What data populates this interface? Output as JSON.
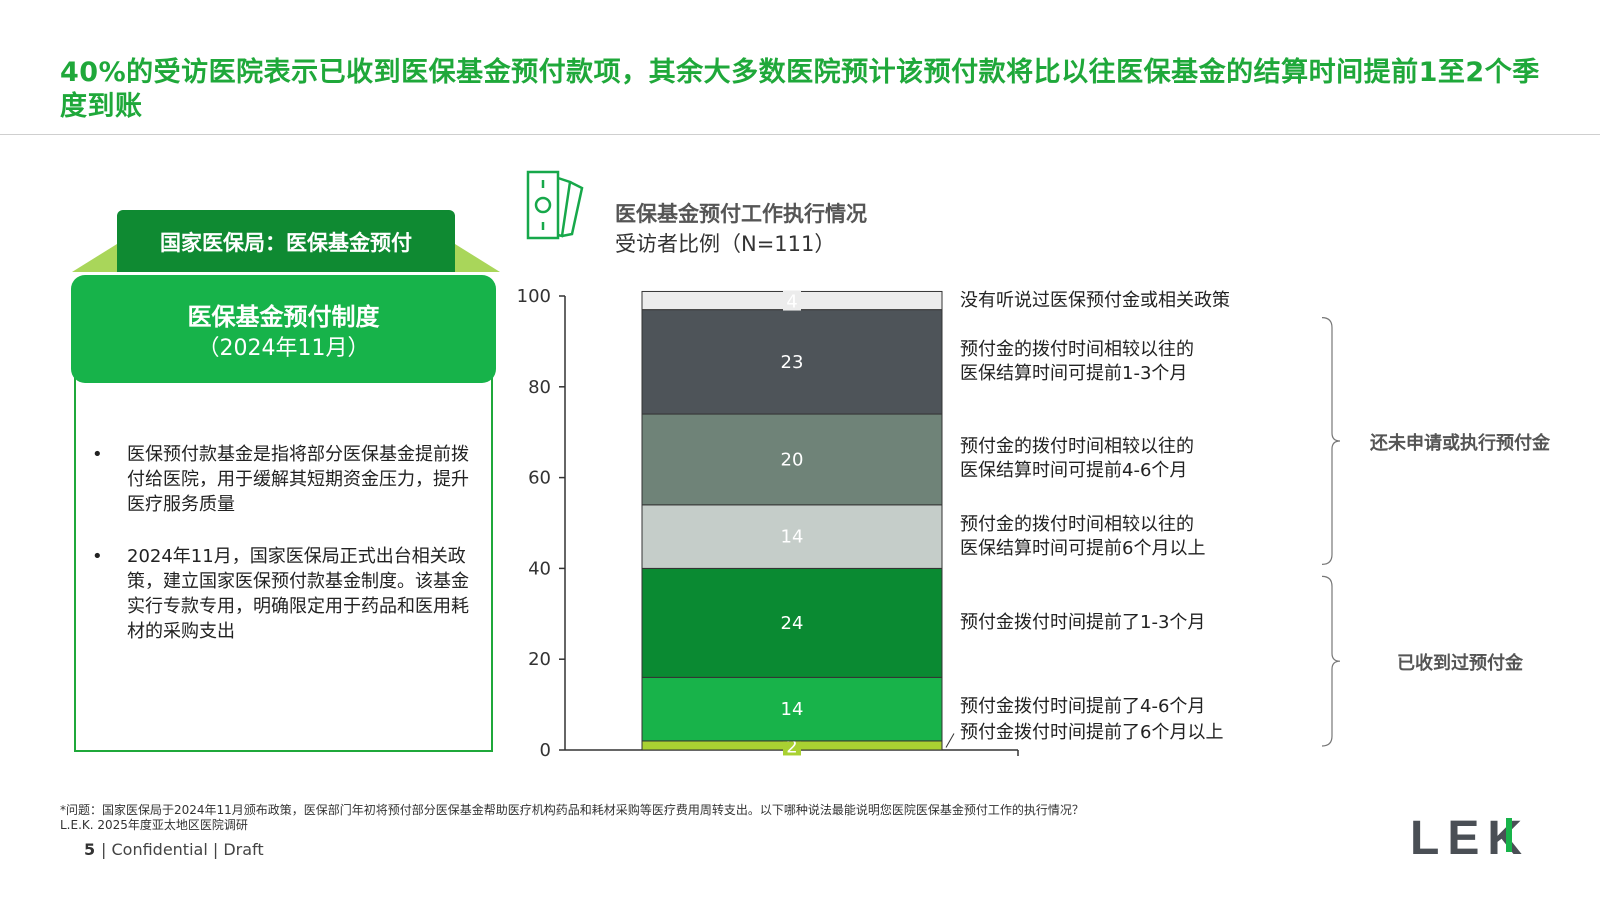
{
  "page": {
    "title": "40%的受访医院表示已收到医保基金预付款项，其余大多数医院预计该预付款将比以往医保基金的结算时间提前1至2个季度到账",
    "page_number": "5",
    "confidentiality": "| Confidential | Draft",
    "footnote_question": "*问题：国家医保局于2024年11月颁布政策，医保部门年初将预付部分医保基金帮助医疗机构药品和耗材采购等医疗费用周转支出。以下哪种说法最能说明您医院医保基金预付工作的执行情况？",
    "footnote_source": "L.E.K. 2025年度亚太地区医院调研",
    "logo_text": "LEK"
  },
  "left_panel": {
    "tab_label": "国家医保局：医保基金预付",
    "heading": "医保基金预付制度",
    "subheading": "（2024年11月）",
    "bullets": [
      "医保预付款基金是指将部分医保基金提前拨付给医院，用于缓解其短期资金压力，提升医疗服务质量",
      "2024年11月，国家医保局正式出台相关政策，建立国家医保预付款基金制度。该基金实行专款专用，明确限定用于药品和医用耗材的采购支出"
    ],
    "bullet_symbol": "•"
  },
  "chart_data": {
    "type": "bar",
    "stacked": true,
    "title": "医保基金预付工作执行情况",
    "subtitle": "受访者比例（N=111）",
    "ylim": [
      0,
      100
    ],
    "yticks": [
      0,
      20,
      40,
      60,
      80,
      100
    ],
    "series": [
      {
        "name": "预付金拨付时间提前了6个月以上",
        "value": 2,
        "color": "#a9d132"
      },
      {
        "name": "预付金拨付时间提前了4-6个月",
        "value": 14,
        "color": "#18b34a"
      },
      {
        "name": "预付金拨付时间提前了1-3个月",
        "value": 24,
        "color": "#0a8a32"
      },
      {
        "name": "预付金的拨付时间相较以往的医保结算时间可提前6个月以上",
        "value": 14,
        "color": "#c5cdc9"
      },
      {
        "name": "预付金的拨付时间相较以往的医保结算时间可提前4-6个月",
        "value": 20,
        "color": "#6f8378"
      },
      {
        "name": "预付金的拨付时间相较以往的医保结算时间可提前1-3个月",
        "value": 23,
        "color": "#4e5459"
      },
      {
        "name": "没有听说过医保预付金或相关政策",
        "value": 4,
        "color": "#ececec"
      }
    ],
    "series_labels": [
      [
        "预付金拨付时间提前了6个月以上"
      ],
      [
        "预付金拨付时间提前了4-6个月"
      ],
      [
        "预付金拨付时间提前了1-3个月"
      ],
      [
        "预付金的拨付时间相较以往的",
        "医保结算时间可提前6个月以上"
      ],
      [
        "预付金的拨付时间相较以往的",
        "医保结算时间可提前4-6个月"
      ],
      [
        "预付金的拨付时间相较以往的",
        "医保结算时间可提前1-3个月"
      ],
      [
        "没有听说过医保预付金或相关政策"
      ]
    ],
    "groups": [
      {
        "label": "已收到过预付金",
        "from_index": 0,
        "to_index": 2
      },
      {
        "label": "还未申请或执行预付金",
        "from_index": 3,
        "to_index": 5
      }
    ]
  }
}
